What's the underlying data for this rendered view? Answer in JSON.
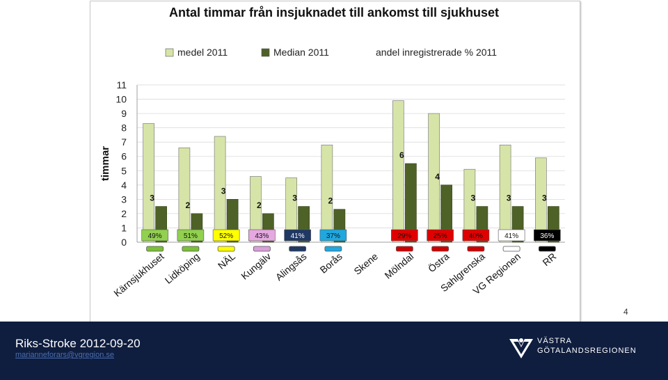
{
  "chart_data": {
    "type": "bar",
    "title": "Antal timmar från insjuknadet till ankomst till sjukhuset",
    "ylabel": "timmar",
    "ylim": [
      0,
      11
    ],
    "yticks": [
      "0",
      "1",
      "2",
      "3",
      "4",
      "5",
      "6",
      "7",
      "8",
      "9",
      "10",
      "11"
    ],
    "grid": true,
    "legend_position": "top",
    "categories": [
      "Kärnsjukhuset",
      "Lidköping",
      "NÄL",
      "Kungälv",
      "Alingsås",
      "Borås",
      "Skene",
      "Mölndal",
      "Östra",
      "Sahlgrenska",
      "VG Regionen",
      "RR"
    ],
    "series": [
      {
        "name": "medel 2011",
        "color": "#d6e4a8",
        "values": [
          8.3,
          6.6,
          7.4,
          4.6,
          4.5,
          6.8,
          null,
          9.9,
          9.0,
          5.1,
          6.8,
          5.9
        ]
      },
      {
        "name": "Median 2011",
        "color": "#4e6228",
        "values": [
          2.5,
          2.0,
          3.0,
          2.0,
          2.5,
          2.3,
          null,
          5.5,
          4.0,
          2.5,
          2.5,
          2.5
        ]
      }
    ],
    "median_labels": [
      "3",
      "2",
      "3",
      "2",
      "3",
      "2",
      "",
      "6",
      "4",
      "3",
      "3",
      "3"
    ],
    "andel_legend": "andel inregistrerade % 2011",
    "andel_labels": [
      "49%",
      "51%",
      "52%",
      "43%",
      "41%",
      "37%",
      "",
      "29%",
      "25%",
      "40%",
      "41%",
      "36%"
    ],
    "andel_colors": [
      "#92d050",
      "#92d050",
      "#ffff00",
      "#e6a8e0",
      "#1f3864",
      "#1fa8e0",
      "",
      "#e00000",
      "#e00000",
      "#e00000",
      "#ffffff",
      "#000000"
    ],
    "andel_text_colors": [
      "#111",
      "#111",
      "#111",
      "#111",
      "#fff",
      "#111",
      "",
      "#111",
      "#111",
      "#111",
      "#111",
      "#fff"
    ],
    "marker_colors": [
      "#7dbf3a",
      "#7dbf3a",
      "#ffff00",
      "#d9a0d9",
      "#1f3864",
      "#1fa8e0",
      "",
      "#d00000",
      "#d00000",
      "#d00000",
      "#ffffff",
      "#000000"
    ]
  },
  "page_number": "4",
  "footer": {
    "title": "Riks-Stroke 2012-09-20",
    "email": "marianneforars@vgregion.se"
  },
  "logo": {
    "line1": "VÄSTRA",
    "line2": "GÖTALANDSREGIONEN"
  }
}
